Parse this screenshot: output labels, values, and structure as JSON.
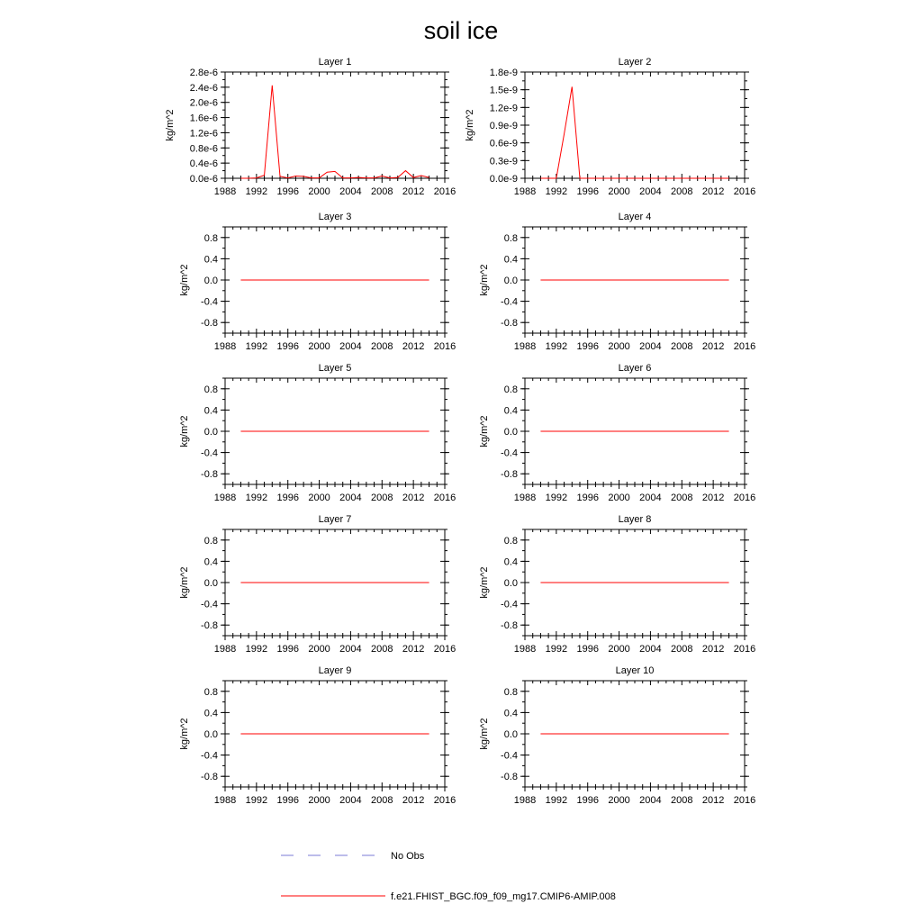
{
  "figure": {
    "title": "soil ice",
    "legend": [
      {
        "label": "No Obs",
        "color": "#7b7bd6",
        "dash": true
      },
      {
        "label": "f.e21.FHIST_BGC.f09_f09_mg17.CMIP6-AMIP.008",
        "color": "#ff0000",
        "dash": false
      }
    ]
  },
  "chart_data": [
    {
      "type": "line",
      "title": "Layer 1",
      "ylabel": "kg/m^2",
      "xlim": [
        1988,
        2016
      ],
      "xticks": [
        1988,
        1992,
        1996,
        2000,
        2004,
        2008,
        2012,
        2016
      ],
      "ylim": [
        0,
        2.8e-06
      ],
      "ytick_labels": [
        "0.0e-6",
        "0.4e-6",
        "0.8e-6",
        "1.2e-6",
        "1.6e-6",
        "2.0e-6",
        "2.4e-6",
        "2.8e-6"
      ],
      "ytick_values": [
        0,
        4e-07,
        8e-07,
        1.2e-06,
        1.6e-06,
        2e-06,
        2.4e-06,
        2.8e-06
      ],
      "series": [
        {
          "color": "#ff0000",
          "x": [
            1990,
            1991,
            1992,
            1993,
            1994,
            1995,
            1996,
            1997,
            1998,
            1999,
            2000,
            2001,
            2002,
            2003,
            2004,
            2005,
            2006,
            2007,
            2008,
            2009,
            2010,
            2011,
            2012,
            2013,
            2014
          ],
          "values": [
            0,
            0,
            1e-08,
            8e-08,
            2.45e-06,
            5e-08,
            1e-08,
            6e-08,
            5e-08,
            1e-08,
            1e-08,
            1.6e-07,
            1.8e-07,
            1e-08,
            1e-08,
            2e-08,
            1e-08,
            1e-08,
            6e-08,
            1e-08,
            2e-08,
            2e-07,
            2e-08,
            7e-08,
            2e-08
          ]
        }
      ]
    },
    {
      "type": "line",
      "title": "Layer 2",
      "ylabel": "kg/m^2",
      "xlim": [
        1988,
        2016
      ],
      "xticks": [
        1988,
        1992,
        1996,
        2000,
        2004,
        2008,
        2012,
        2016
      ],
      "ylim": [
        0,
        1.8e-09
      ],
      "ytick_labels": [
        "0.0e-9",
        "0.3e-9",
        "0.6e-9",
        "0.9e-9",
        "1.2e-9",
        "1.5e-9",
        "1.8e-9"
      ],
      "ytick_values": [
        0,
        3e-10,
        6e-10,
        9e-10,
        1.2e-09,
        1.5e-09,
        1.8e-09
      ],
      "series": [
        {
          "color": "#ff0000",
          "x": [
            1990,
            1991,
            1992,
            1993,
            1994,
            1995,
            1996,
            1997,
            1998,
            1999,
            2000,
            2001,
            2002,
            2003,
            2004,
            2005,
            2006,
            2007,
            2008,
            2009,
            2010,
            2011,
            2012,
            2013,
            2014
          ],
          "values": [
            0,
            0,
            0,
            7.5e-10,
            1.55e-09,
            0,
            0,
            0,
            0,
            0,
            0,
            0,
            0,
            0,
            0,
            0,
            0,
            0,
            0,
            0,
            0,
            0,
            0,
            0,
            0
          ]
        }
      ]
    },
    {
      "type": "line",
      "title": "Layer 3",
      "ylabel": "kg/m^2",
      "xlim": [
        1988,
        2016
      ],
      "xticks": [
        1988,
        1992,
        1996,
        2000,
        2004,
        2008,
        2012,
        2016
      ],
      "ylim": [
        -1,
        1
      ],
      "ytick_labels": [
        "-0.8",
        "-0.4",
        "0.0",
        "0.4",
        "0.8"
      ],
      "ytick_values": [
        -0.8,
        -0.4,
        0,
        0.4,
        0.8
      ],
      "series": [
        {
          "color": "#ff0000",
          "x": [
            1990,
            2014
          ],
          "values": [
            0,
            0
          ]
        }
      ]
    },
    {
      "type": "line",
      "title": "Layer 4",
      "ylabel": "kg/m^2",
      "xlim": [
        1988,
        2016
      ],
      "xticks": [
        1988,
        1992,
        1996,
        2000,
        2004,
        2008,
        2012,
        2016
      ],
      "ylim": [
        -1,
        1
      ],
      "ytick_labels": [
        "-0.8",
        "-0.4",
        "0.0",
        "0.4",
        "0.8"
      ],
      "ytick_values": [
        -0.8,
        -0.4,
        0,
        0.4,
        0.8
      ],
      "series": [
        {
          "color": "#ff0000",
          "x": [
            1990,
            2014
          ],
          "values": [
            0,
            0
          ]
        }
      ]
    },
    {
      "type": "line",
      "title": "Layer 5",
      "ylabel": "kg/m^2",
      "xlim": [
        1988,
        2016
      ],
      "xticks": [
        1988,
        1992,
        1996,
        2000,
        2004,
        2008,
        2012,
        2016
      ],
      "ylim": [
        -1,
        1
      ],
      "ytick_labels": [
        "-0.8",
        "-0.4",
        "0.0",
        "0.4",
        "0.8"
      ],
      "ytick_values": [
        -0.8,
        -0.4,
        0,
        0.4,
        0.8
      ],
      "series": [
        {
          "color": "#ff0000",
          "x": [
            1990,
            2014
          ],
          "values": [
            0,
            0
          ]
        }
      ]
    },
    {
      "type": "line",
      "title": "Layer 6",
      "ylabel": "kg/m^2",
      "xlim": [
        1988,
        2016
      ],
      "xticks": [
        1988,
        1992,
        1996,
        2000,
        2004,
        2008,
        2012,
        2016
      ],
      "ylim": [
        -1,
        1
      ],
      "ytick_labels": [
        "-0.8",
        "-0.4",
        "0.0",
        "0.4",
        "0.8"
      ],
      "ytick_values": [
        -0.8,
        -0.4,
        0,
        0.4,
        0.8
      ],
      "series": [
        {
          "color": "#ff0000",
          "x": [
            1990,
            2014
          ],
          "values": [
            0,
            0
          ]
        }
      ]
    },
    {
      "type": "line",
      "title": "Layer 7",
      "ylabel": "kg/m^2",
      "xlim": [
        1988,
        2016
      ],
      "xticks": [
        1988,
        1992,
        1996,
        2000,
        2004,
        2008,
        2012,
        2016
      ],
      "ylim": [
        -1,
        1
      ],
      "ytick_labels": [
        "-0.8",
        "-0.4",
        "0.0",
        "0.4",
        "0.8"
      ],
      "ytick_values": [
        -0.8,
        -0.4,
        0,
        0.4,
        0.8
      ],
      "series": [
        {
          "color": "#ff0000",
          "x": [
            1990,
            2014
          ],
          "values": [
            0,
            0
          ]
        }
      ]
    },
    {
      "type": "line",
      "title": "Layer 8",
      "ylabel": "kg/m^2",
      "xlim": [
        1988,
        2016
      ],
      "xticks": [
        1988,
        1992,
        1996,
        2000,
        2004,
        2008,
        2012,
        2016
      ],
      "ylim": [
        -1,
        1
      ],
      "ytick_labels": [
        "-0.8",
        "-0.4",
        "0.0",
        "0.4",
        "0.8"
      ],
      "ytick_values": [
        -0.8,
        -0.4,
        0,
        0.4,
        0.8
      ],
      "series": [
        {
          "color": "#ff0000",
          "x": [
            1990,
            2014
          ],
          "values": [
            0,
            0
          ]
        }
      ]
    },
    {
      "type": "line",
      "title": "Layer 9",
      "ylabel": "kg/m^2",
      "xlim": [
        1988,
        2016
      ],
      "xticks": [
        1988,
        1992,
        1996,
        2000,
        2004,
        2008,
        2012,
        2016
      ],
      "ylim": [
        -1,
        1
      ],
      "ytick_labels": [
        "-0.8",
        "-0.4",
        "0.0",
        "0.4",
        "0.8"
      ],
      "ytick_values": [
        -0.8,
        -0.4,
        0,
        0.4,
        0.8
      ],
      "series": [
        {
          "color": "#ff0000",
          "x": [
            1990,
            2014
          ],
          "values": [
            0,
            0
          ]
        }
      ]
    },
    {
      "type": "line",
      "title": "Layer 10",
      "ylabel": "kg/m^2",
      "xlim": [
        1988,
        2016
      ],
      "xticks": [
        1988,
        1992,
        1996,
        2000,
        2004,
        2008,
        2012,
        2016
      ],
      "ylim": [
        -1,
        1
      ],
      "ytick_labels": [
        "-0.8",
        "-0.4",
        "0.0",
        "0.4",
        "0.8"
      ],
      "ytick_values": [
        -0.8,
        -0.4,
        0,
        0.4,
        0.8
      ],
      "series": [
        {
          "color": "#ff0000",
          "x": [
            1990,
            2014
          ],
          "values": [
            0,
            0
          ]
        }
      ]
    }
  ]
}
